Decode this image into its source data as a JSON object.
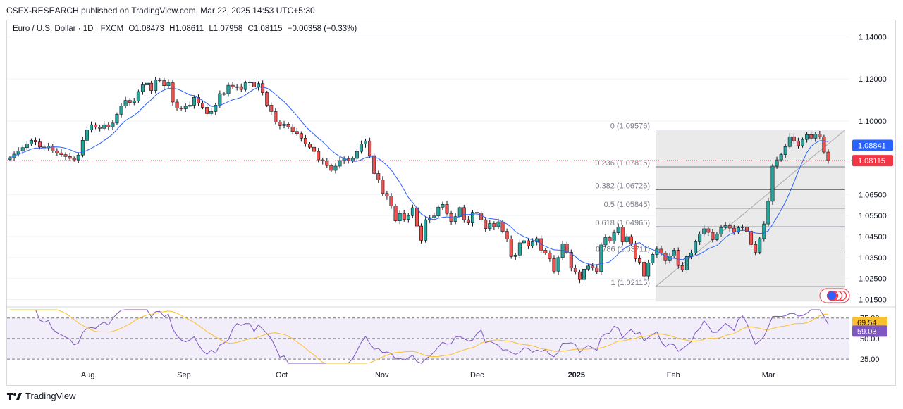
{
  "header": {
    "publisher_line": "CSFX-RESEARCH published on TradingView.com, Mar 22, 2025 14:53 UTC+5:30"
  },
  "legend": {
    "symbol": "Euro / U.S. Dollar · 1D · FXCM",
    "open": "O1.08473",
    "high": "H1.08611",
    "low": "L1.07958",
    "close": "C1.08115",
    "change": "−0.00358 (−0.33%)"
  },
  "footer": {
    "brand": "TradingView",
    "logo": "tradingview-logo-icon"
  },
  "colors": {
    "up": "#26a69a",
    "down": "#ef5350",
    "ma": "#2962ff",
    "rsi": "#7e57c2",
    "rsi_ma": "#fbc02d",
    "fib": "#787b86",
    "price_tag": "#f23645",
    "ma_tag": "#2962ff"
  },
  "chart_data": [
    {
      "type": "candlestick",
      "title": "Euro / U.S. Dollar · 1D · FXCM",
      "y_ticks": [
        "1.14000",
        "1.12000",
        "1.10000",
        "1.06500",
        "1.05500",
        "1.04500",
        "1.03500",
        "1.02500",
        "1.01500"
      ],
      "y_tick_values": [
        1.14,
        1.12,
        1.1,
        1.065,
        1.055,
        1.045,
        1.035,
        1.025,
        1.015
      ],
      "ylim": [
        1.0125,
        1.1425
      ],
      "x_ticks": [
        "Aug",
        "Sep",
        "Oct",
        "Nov",
        "Dec",
        "2025",
        "Feb",
        "Mar"
      ],
      "current_price": "1.08115",
      "ma_value": "1.08841",
      "series_close": [
        1.0825,
        1.0842,
        1.0858,
        1.0873,
        1.089,
        1.0908,
        1.09,
        1.0876,
        1.0872,
        1.0881,
        1.0858,
        1.0848,
        1.084,
        1.0831,
        1.0822,
        1.0815,
        1.0838,
        1.0908,
        1.0958,
        1.0982,
        1.097,
        1.0965,
        1.0982,
        1.0972,
        1.099,
        1.1032,
        1.1072,
        1.1098,
        1.1088,
        1.1095,
        1.114,
        1.1172,
        1.118,
        1.1145,
        1.1195,
        1.1192,
        1.1168,
        1.1182,
        1.109,
        1.1062,
        1.1058,
        1.107,
        1.1075,
        1.1112,
        1.1085,
        1.1065,
        1.1035,
        1.1045,
        1.1075,
        1.113,
        1.113,
        1.117,
        1.1162,
        1.1163,
        1.115,
        1.1182,
        1.1185,
        1.1162,
        1.1178,
        1.1135,
        1.1075,
        1.1045,
        1.0995,
        1.0978,
        1.0985,
        1.0972,
        1.095,
        1.094,
        1.0918,
        1.089,
        1.0875,
        1.0855,
        1.0815,
        1.081,
        1.0788,
        1.0765,
        1.0785,
        1.0812,
        1.082,
        1.081,
        1.0822,
        1.0855,
        1.089,
        1.0905,
        1.0835,
        1.075,
        1.072,
        1.0655,
        1.0642,
        1.0595,
        1.0525,
        1.056,
        1.0532,
        1.055,
        1.0587,
        1.05,
        1.0432,
        1.053,
        1.054,
        1.0548,
        1.059,
        1.0603,
        1.056,
        1.0522,
        1.0545,
        1.0588,
        1.053,
        1.0515,
        1.0565,
        1.0562,
        1.053,
        1.0488,
        1.0512,
        1.0497,
        1.052,
        1.0475,
        1.0438,
        1.0355,
        1.0362,
        1.042,
        1.043,
        1.0405,
        1.0425,
        1.044,
        1.0385,
        1.0372,
        1.0345,
        1.0285,
        1.035,
        1.0415,
        1.0375,
        1.03,
        1.0282,
        1.0245,
        1.0295,
        1.031,
        1.0302,
        1.0283,
        1.041,
        1.0445,
        1.0428,
        1.0468,
        1.0495,
        1.0425,
        1.045,
        1.0415,
        1.0345,
        1.0328,
        1.0262,
        1.0325,
        1.0365,
        1.039,
        1.037,
        1.0335,
        1.0358,
        1.0385,
        1.0312,
        1.0292,
        1.0355,
        1.0372,
        1.0425,
        1.0462,
        1.0487,
        1.047,
        1.0435,
        1.0462,
        1.0493,
        1.0502,
        1.049,
        1.0471,
        1.0492,
        1.0495,
        1.0475,
        1.0412,
        1.0375,
        1.044,
        1.051,
        1.0618,
        1.0785,
        1.0815,
        1.084,
        1.0878,
        1.0925,
        1.0905,
        1.0882,
        1.0912,
        1.0935,
        1.0918,
        1.0938,
        1.0925,
        1.0852,
        1.0812
      ],
      "rsi": {
        "value": "59.03",
        "ma_value": "69.54",
        "ylim": [
          20,
          85
        ],
        "levels": [
          75,
          50,
          25
        ],
        "y_ticks": [
          "75.00",
          "50.00",
          "25.00"
        ],
        "y_tick_values": [
          75,
          50,
          25
        ]
      },
      "fibonacci": [
        {
          "level": "0 (1.09576)",
          "price": 1.09576
        },
        {
          "level": "0.236 (1.07815)",
          "price": 1.07815
        },
        {
          "level": "0.382 (1.06726)",
          "price": 1.06726
        },
        {
          "level": "0.5 (1.05845)",
          "price": 1.05845
        },
        {
          "level": "0.618 (1.04965)",
          "price": 1.04965
        },
        {
          "level": "0.786 (1.03711)",
          "price": 1.03711
        },
        {
          "level": "1 (1.02115)",
          "price": 1.02115
        }
      ]
    }
  ]
}
